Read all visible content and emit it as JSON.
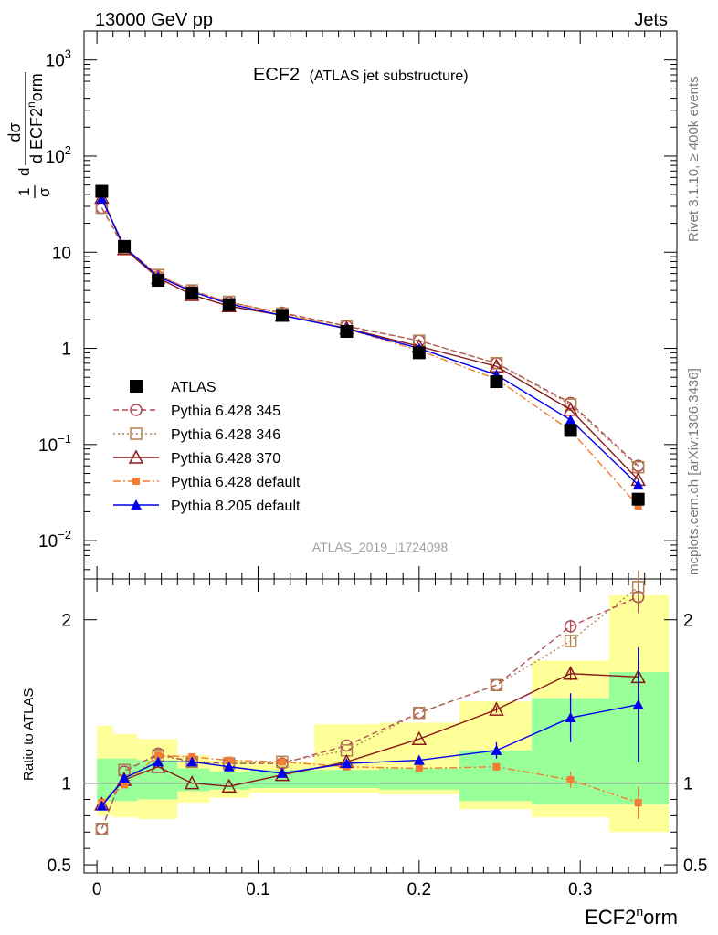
{
  "header": {
    "energy": "13000 GeV pp",
    "process": "Jets"
  },
  "plot_title": {
    "main": "ECF2",
    "sub": "(ATLAS jet substructure)"
  },
  "side_labels": {
    "rivet": "Rivet 3.1.10, ≥ 400k events",
    "mcplots": "mcplots.cern.ch [arXiv:1306.3436]"
  },
  "analysis_id": "ATLAS_2019_I1724098",
  "chart_data": [
    {
      "type": "line",
      "title": "ECF2 (ATLAS jet substructure)",
      "ylabel": "1/σ dσ/d ECF2norm",
      "yscale": "log",
      "ylim": [
        0.004,
        2000
      ],
      "xlim": [
        -0.008,
        0.36
      ],
      "yticks": [
        {
          "value": 0.01,
          "base": "10",
          "exp": "−2"
        },
        {
          "value": 0.1,
          "base": "10",
          "exp": "−1"
        },
        {
          "value": 1,
          "base": "1",
          "exp": ""
        },
        {
          "value": 10,
          "base": "10",
          "exp": ""
        },
        {
          "value": 100,
          "base": "10",
          "exp": "2"
        },
        {
          "value": 1000,
          "base": "10",
          "exp": "3"
        }
      ],
      "x": [
        0.003,
        0.017,
        0.038,
        0.059,
        0.082,
        0.115,
        0.155,
        0.2,
        0.248,
        0.294,
        0.336
      ],
      "series": [
        {
          "name": "ATLAS",
          "color": "#000000",
          "dash": "none",
          "marker": "square",
          "values": [
            43,
            11.5,
            5.1,
            3.75,
            2.85,
            2.2,
            1.5,
            0.9,
            0.45,
            0.14,
            0.027
          ]
        },
        {
          "name": "Pythia 6.428 345",
          "color": "#b04a5a",
          "dash": "6,4",
          "marker": "circle-open",
          "values": [
            29,
            11,
            5.6,
            3.95,
            3.0,
            2.35,
            1.7,
            1.2,
            0.7,
            0.27,
            0.06
          ]
        },
        {
          "name": "Pythia 6.428 346",
          "color": "#b08050",
          "dash": "2,3",
          "marker": "square-open",
          "values": [
            29,
            11.2,
            5.8,
            4.0,
            3.05,
            2.3,
            1.72,
            1.2,
            0.7,
            0.26,
            0.058
          ]
        },
        {
          "name": "Pythia 6.428 370",
          "color": "#8b1a1a",
          "dash": "none",
          "marker": "triangle-open",
          "values": [
            37,
            10.8,
            5.4,
            3.6,
            2.75,
            2.2,
            1.62,
            1.05,
            0.65,
            0.23,
            0.043
          ]
        },
        {
          "name": "Pythia 6.428 default",
          "color": "#f47b33",
          "dash": "8,3,2,3",
          "marker": "square-small",
          "values": [
            38,
            11.3,
            5.8,
            4.0,
            3.0,
            2.32,
            1.6,
            0.95,
            0.48,
            0.14,
            0.023
          ]
        },
        {
          "name": "Pythia 8.205 default",
          "color": "#0000ee",
          "dash": "none",
          "marker": "triangle",
          "values": [
            36,
            11.3,
            5.6,
            3.9,
            2.9,
            2.2,
            1.6,
            1.0,
            0.53,
            0.18,
            0.038
          ]
        }
      ]
    },
    {
      "type": "line",
      "ylabel": "Ratio to ATLAS",
      "xlabel": "ECF2norm",
      "xlabel_base": "ECF2",
      "xlabel_sup": "n",
      "xlabel_tail": "orm",
      "ylim": [
        0.45,
        2.25
      ],
      "yticks": [
        {
          "value": 0.5,
          "label": "0.5"
        },
        {
          "value": 1,
          "label": "1"
        },
        {
          "value": 2,
          "label": "2"
        }
      ],
      "xticks": [
        {
          "value": 0,
          "label": "0"
        },
        {
          "value": 0.1,
          "label": "0.1"
        },
        {
          "value": 0.2,
          "label": "0.2"
        },
        {
          "value": 0.3,
          "label": "0.3"
        }
      ],
      "bins": [
        {
          "lo": 0.0,
          "hi": 0.01,
          "in": [
            0.89,
            1.15
          ],
          "out": [
            0.8,
            1.35
          ]
        },
        {
          "lo": 0.01,
          "hi": 0.025,
          "in": [
            0.89,
            1.15
          ],
          "out": [
            0.79,
            1.3
          ]
        },
        {
          "lo": 0.025,
          "hi": 0.05,
          "in": [
            0.9,
            1.14
          ],
          "out": [
            0.78,
            1.27
          ]
        },
        {
          "lo": 0.05,
          "hi": 0.07,
          "in": [
            0.95,
            1.09
          ],
          "out": [
            0.88,
            1.17
          ]
        },
        {
          "lo": 0.07,
          "hi": 0.095,
          "in": [
            0.96,
            1.07
          ],
          "out": [
            0.91,
            1.14
          ]
        },
        {
          "lo": 0.095,
          "hi": 0.135,
          "in": [
            0.97,
            1.08
          ],
          "out": [
            0.94,
            1.13
          ]
        },
        {
          "lo": 0.135,
          "hi": 0.175,
          "in": [
            0.97,
            1.08
          ],
          "out": [
            0.94,
            1.36
          ]
        },
        {
          "lo": 0.175,
          "hi": 0.225,
          "in": [
            0.96,
            1.09
          ],
          "out": [
            0.93,
            1.37
          ]
        },
        {
          "lo": 0.225,
          "hi": 0.27,
          "in": [
            0.89,
            1.2
          ],
          "out": [
            0.84,
            1.5
          ]
        },
        {
          "lo": 0.27,
          "hi": 0.318,
          "in": [
            0.87,
            1.52
          ],
          "out": [
            0.79,
            1.75
          ]
        },
        {
          "lo": 0.318,
          "hi": 0.355,
          "in": [
            0.87,
            1.68
          ],
          "out": [
            0.7,
            2.15
          ]
        }
      ],
      "series": [
        {
          "name": "Pythia 6.428 345",
          "color": "#b04a5a",
          "dash": "6,4",
          "marker": "circle-open",
          "values": [
            0.72,
            1.07,
            1.18,
            1.13,
            1.12,
            1.12,
            1.23,
            1.43,
            1.6,
            1.96,
            2.14
          ],
          "err": [
            0,
            0,
            0,
            0,
            0,
            0,
            0,
            0,
            0,
            0.04,
            0.1
          ]
        },
        {
          "name": "Pythia 6.428 346",
          "color": "#b08050",
          "dash": "2,3",
          "marker": "square-open",
          "values": [
            0.72,
            1.08,
            1.17,
            1.13,
            1.12,
            1.13,
            1.2,
            1.43,
            1.6,
            1.87,
            2.2
          ],
          "err": [
            0,
            0,
            0,
            0,
            0,
            0,
            0,
            0,
            0,
            0.04,
            0.1
          ]
        },
        {
          "name": "Pythia 6.428 370",
          "color": "#8b1a1a",
          "dash": "none",
          "marker": "triangle-open",
          "values": [
            0.87,
            1.02,
            1.1,
            1.0,
            0.98,
            1.05,
            1.13,
            1.27,
            1.45,
            1.67,
            1.65
          ],
          "err": [
            0,
            0,
            0,
            0,
            0,
            0,
            0,
            0,
            0.02,
            0.04,
            0.1
          ]
        },
        {
          "name": "Pythia 6.428 default",
          "color": "#f47b33",
          "dash": "8,3,2,3",
          "marker": "square-small",
          "values": [
            0.88,
            0.99,
            1.17,
            1.16,
            1.14,
            1.13,
            1.1,
            1.09,
            1.1,
            1.02,
            0.88
          ],
          "err": [
            0,
            0,
            0,
            0,
            0,
            0,
            0,
            0,
            0.02,
            0.05,
            0.1
          ]
        },
        {
          "name": "Pythia 8.205 default",
          "color": "#0000ee",
          "dash": "none",
          "marker": "triangle",
          "values": [
            0.86,
            1.03,
            1.13,
            1.13,
            1.1,
            1.06,
            1.12,
            1.14,
            1.2,
            1.4,
            1.48
          ],
          "err": [
            0,
            0,
            0,
            0,
            0,
            0,
            0,
            0,
            0.05,
            0.15,
            0.35
          ]
        }
      ]
    }
  ]
}
